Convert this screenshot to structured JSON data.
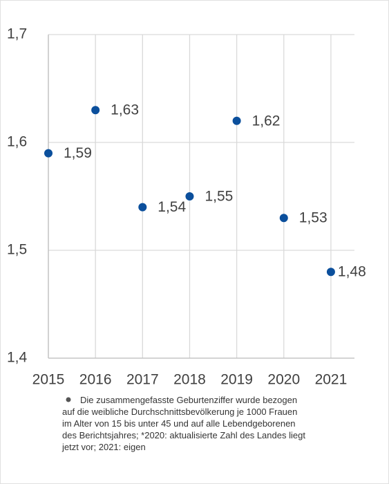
{
  "chart_data": {
    "type": "scatter",
    "x": [
      2015,
      2016,
      2017,
      2018,
      2019,
      2020,
      2021
    ],
    "values": [
      1.59,
      1.63,
      1.54,
      1.55,
      1.62,
      1.53,
      1.48
    ],
    "value_labels": [
      "1,59",
      "1,63",
      "1,54",
      "1,55",
      "1,62",
      "1,53",
      "1,48"
    ],
    "color": "#0b4f9c",
    "xlim": [
      2015,
      2021.5
    ],
    "xticks": [
      2015,
      2016,
      2017,
      2018,
      2019,
      2020,
      2021
    ],
    "ylim": [
      1.4,
      1.7
    ],
    "yticks": [
      {
        "value": 1.4,
        "label": "1,4"
      },
      {
        "value": 1.5,
        "label": "1,5"
      },
      {
        "value": 1.6,
        "label": "1,6"
      },
      {
        "value": 1.7,
        "label": "1,7"
      }
    ],
    "grid": true,
    "note": [
      "Die zusammengefasste Geburtenziffer wurde bezogen",
      "auf die weibliche Durchschnittsbevölkerung je 1000 Frauen",
      "im Alter von 15 bis unter 45 und auf alle Lebendgeborenen",
      "des Berichtsjahres; *2020: aktualisierte Zahl des Landes liegt",
      "jetzt vor; 2021: eigen"
    ]
  }
}
